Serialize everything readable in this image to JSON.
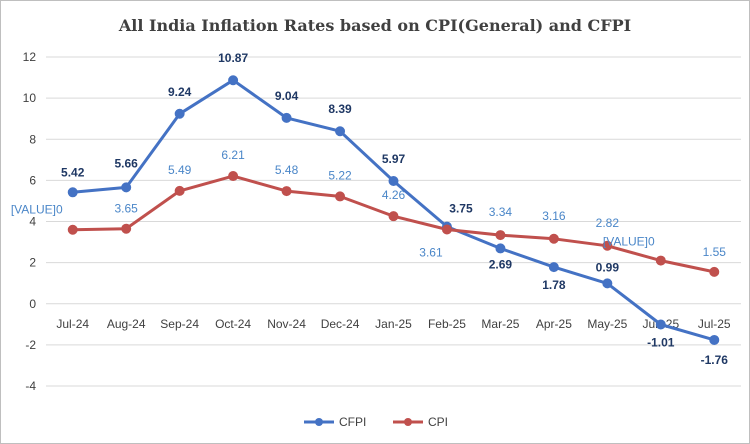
{
  "chart_data": {
    "type": "line",
    "title": "All India Inflation Rates based on CPI(General) and CFPI",
    "xlabel": "",
    "ylabel": "",
    "categories": [
      "Jul-24",
      "Aug-24",
      "Sep-24",
      "Oct-24",
      "Nov-24",
      "Dec-24",
      "Jan-25",
      "Feb-25",
      "Mar-25",
      "Apr-25",
      "May-25",
      "Jun-25",
      "Jul-25"
    ],
    "ylim": [
      -4,
      12
    ],
    "yticks": [
      "-4",
      "-2",
      "0",
      "2",
      "4",
      "6",
      "8",
      "10",
      "12"
    ],
    "grid": true,
    "legend_position": "bottom",
    "series": [
      {
        "name": "CFPI",
        "color": "#4472c4",
        "values": [
          5.42,
          5.66,
          9.24,
          10.87,
          9.04,
          8.39,
          5.97,
          3.75,
          2.69,
          1.78,
          0.99,
          -1.01,
          -1.76
        ],
        "labels": [
          "5.42",
          "5.66",
          "9.24",
          "10.87",
          "9.04",
          "8.39",
          "5.97",
          "3.75",
          "2.69",
          "1.78",
          "0.99",
          "-1.01",
          "-1.76"
        ]
      },
      {
        "name": "CPI",
        "color": "#c0504d",
        "values": [
          3.6,
          3.65,
          5.49,
          6.21,
          5.48,
          5.22,
          4.26,
          3.61,
          3.34,
          3.16,
          2.82,
          2.1,
          1.55
        ],
        "labels": [
          "[VALUE]0",
          "3.65",
          "5.49",
          "6.21",
          "5.48",
          "5.22",
          "4.26",
          "3.61",
          "3.34",
          "3.16",
          "2.82",
          "[VALUE]0",
          "1.55"
        ]
      }
    ]
  }
}
